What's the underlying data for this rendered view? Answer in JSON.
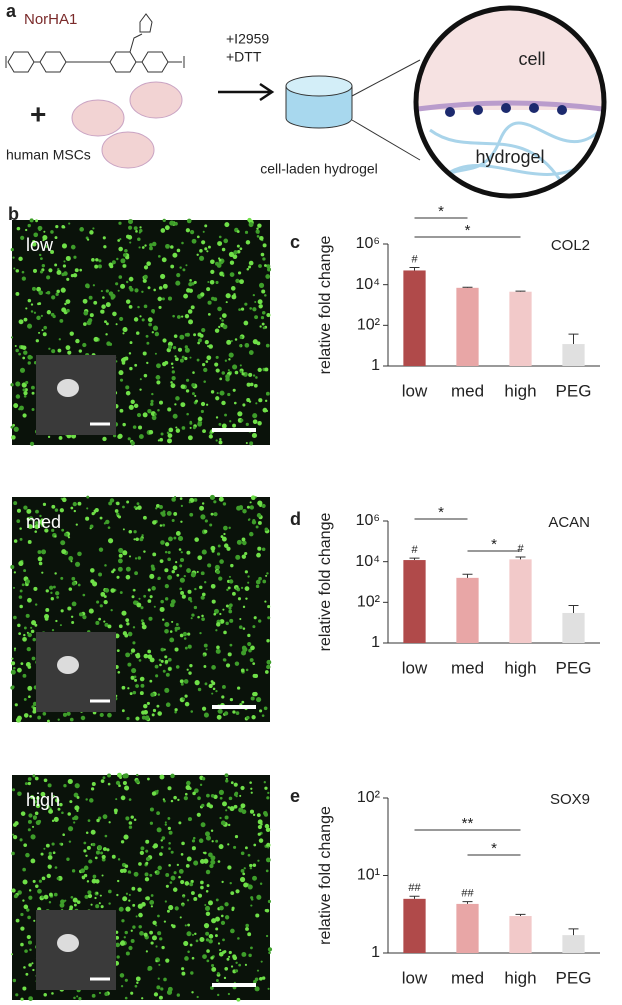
{
  "panel_labels": [
    "a",
    "b",
    "c",
    "d",
    "e"
  ],
  "schematic": {
    "polymer": "NorHA1",
    "plus": "+",
    "cells": "human MSCs",
    "reagents": [
      "+I2959",
      "+DTT"
    ],
    "product": "cell-laden hydrogel",
    "zoom_labels": [
      "cell",
      "hydrogel"
    ]
  },
  "micrographs": [
    "low",
    "med",
    "high"
  ],
  "chart_data": [
    {
      "type": "bar",
      "gene": "COL2",
      "y_label": "relative fold change",
      "log_scale": true,
      "categories": [
        "low",
        "med",
        "high",
        "PEG"
      ],
      "values": [
        50000,
        7000,
        4500,
        12
      ],
      "errors": [
        20000,
        500,
        300,
        25
      ],
      "colors": [
        "#b04a4a",
        "#e8a6a6",
        "#f2c9c9",
        "#e0e0e0"
      ],
      "ylim": [
        1,
        1000000
      ],
      "yticks": [
        1,
        {
          "value": 100,
          "label": "10²"
        },
        {
          "value": 10000,
          "label": "10⁴"
        },
        {
          "value": 1000000,
          "label": "10⁶"
        }
      ],
      "value_annotations": [
        "#",
        null,
        null,
        null
      ],
      "brackets": [
        {
          "between": [
            "low",
            "med"
          ],
          "label": "*"
        },
        {
          "between": [
            "low",
            "high"
          ],
          "label": "*"
        }
      ]
    },
    {
      "type": "bar",
      "gene": "ACAN",
      "y_label": "relative fold change",
      "log_scale": true,
      "categories": [
        "low",
        "med",
        "high",
        "PEG"
      ],
      "values": [
        12000,
        1600,
        13000,
        30
      ],
      "errors": [
        3000,
        800,
        4000,
        40
      ],
      "colors": [
        "#b04a4a",
        "#e8a6a6",
        "#f2c9c9",
        "#e0e0e0"
      ],
      "ylim": [
        1,
        1000000
      ],
      "yticks": [
        1,
        {
          "value": 100,
          "label": "10²"
        },
        {
          "value": 10000,
          "label": "10⁴"
        },
        {
          "value": 1000000,
          "label": "10⁶"
        }
      ],
      "value_annotations": [
        "#",
        null,
        "#",
        null
      ],
      "brackets": [
        {
          "between": [
            "low",
            "med"
          ],
          "label": "*"
        },
        {
          "between": [
            "med",
            "high"
          ],
          "label": "*"
        }
      ]
    },
    {
      "type": "bar",
      "gene": "SOX9",
      "y_label": "relative fold change",
      "log_scale": true,
      "categories": [
        "low",
        "med",
        "high",
        "PEG"
      ],
      "values": [
        5,
        4.3,
        3.0,
        1.7
      ],
      "errors": [
        0.4,
        0.3,
        0.15,
        0.35
      ],
      "colors": [
        "#b04a4a",
        "#e8a6a6",
        "#f2c9c9",
        "#e0e0e0"
      ],
      "ylim": [
        1,
        100
      ],
      "yticks": [
        1,
        {
          "value": 10,
          "label": "10¹"
        },
        {
          "value": 100,
          "label": "10²"
        }
      ],
      "value_annotations": [
        "##",
        "##",
        null,
        null
      ],
      "brackets": [
        {
          "between": [
            "low",
            "high"
          ],
          "label": "**"
        },
        {
          "between": [
            "med",
            "high"
          ],
          "label": "*"
        }
      ]
    }
  ]
}
